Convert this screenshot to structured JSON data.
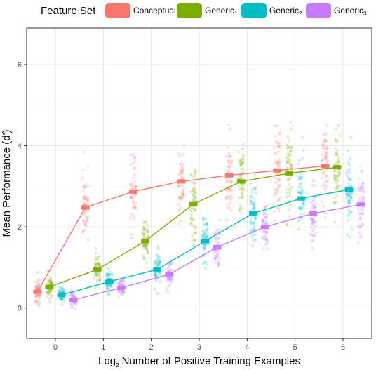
{
  "legend": {
    "title": "Feature Set",
    "position": "top",
    "items": [
      {
        "label": "Conceptual",
        "sub": "",
        "color": "#F8766D"
      },
      {
        "label": "Generic",
        "sub": "1",
        "color": "#7CAE00"
      },
      {
        "label": "Generic",
        "sub": "2",
        "color": "#00BFC4"
      },
      {
        "label": "Generic",
        "sub": "3",
        "color": "#C77CFF"
      }
    ]
  },
  "chart_data": {
    "type": "scatter",
    "xlabel": {
      "prefix": "Log",
      "sub": "2",
      "rest": " Number of Positive Training Examples"
    },
    "ylabel": "Mean Performance (d')",
    "x_ticks": [
      0,
      1,
      2,
      3,
      4,
      5,
      6
    ],
    "y_ticks": [
      0,
      2,
      4,
      6
    ],
    "xlim": [
      -0.6,
      6.6
    ],
    "ylim": [
      -0.75,
      6.9
    ],
    "grid": true,
    "series_offsets": [
      -0.375,
      -0.125,
      0.125,
      0.375
    ],
    "series": [
      {
        "key": "conceptual",
        "color": "#F8766D",
        "x": [
          0,
          1,
          2,
          3,
          4,
          5,
          6
        ],
        "means": [
          0.4,
          2.48,
          2.87,
          3.12,
          3.27,
          3.39,
          3.5
        ],
        "spread": [
          0.3,
          0.75,
          0.8,
          0.8,
          0.85,
          0.95,
          0.95
        ]
      },
      {
        "key": "generic1",
        "color": "#7CAE00",
        "x": [
          0,
          1,
          2,
          3,
          4,
          5,
          6
        ],
        "means": [
          0.52,
          0.95,
          1.65,
          2.56,
          3.12,
          3.32,
          3.47
        ],
        "spread": [
          0.22,
          0.35,
          0.55,
          0.8,
          0.9,
          0.95,
          1.0
        ]
      },
      {
        "key": "generic2",
        "color": "#00BFC4",
        "x": [
          0,
          1,
          2,
          3,
          4,
          5,
          6
        ],
        "means": [
          0.32,
          0.65,
          0.95,
          1.65,
          2.33,
          2.7,
          2.92
        ],
        "spread": [
          0.18,
          0.25,
          0.35,
          0.5,
          0.65,
          0.8,
          0.9
        ]
      },
      {
        "key": "generic3",
        "color": "#C77CFF",
        "x": [
          0,
          1,
          2,
          3,
          4,
          5,
          6
        ],
        "means": [
          0.2,
          0.5,
          0.83,
          1.5,
          2.0,
          2.33,
          2.55
        ],
        "spread": [
          0.15,
          0.22,
          0.3,
          0.45,
          0.55,
          0.65,
          0.75
        ]
      }
    ]
  }
}
